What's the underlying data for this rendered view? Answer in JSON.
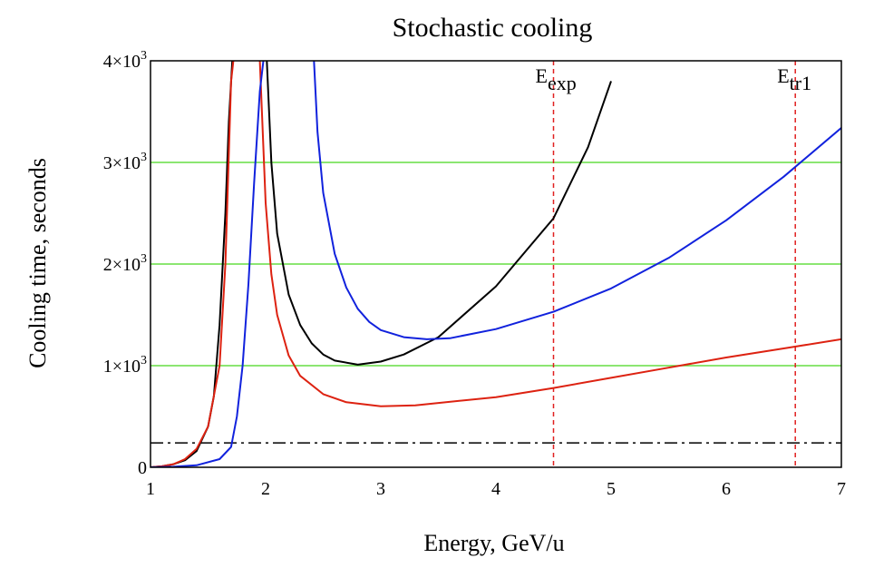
{
  "chart_data": {
    "type": "line",
    "title": "Stochastic cooling",
    "xlabel": "Energy, GeV/u",
    "ylabel": "Cooling time, seconds",
    "xlim": [
      1,
      7
    ],
    "ylim": [
      0,
      4000
    ],
    "x_ticks": [
      "1",
      "2",
      "3",
      "4",
      "5",
      "6",
      "7"
    ],
    "y_ticks": [
      {
        "value": 0,
        "base": "0",
        "exp": ""
      },
      {
        "value": 1000,
        "base": "1×10",
        "exp": "3"
      },
      {
        "value": 2000,
        "base": "2×10",
        "exp": "3"
      },
      {
        "value": 3000,
        "base": "3×10",
        "exp": "3"
      },
      {
        "value": 4000,
        "base": "4×10",
        "exp": "3"
      }
    ],
    "grid": {
      "y_lines": [
        1000,
        2000,
        3000
      ],
      "color": "#66dd44"
    },
    "reference_line": {
      "y": 240,
      "style": "dash-dot",
      "color": "#000000"
    },
    "vertical_markers": [
      {
        "x": 4.5,
        "label_main": "E",
        "label_sub": "exp",
        "color": "#e02020"
      },
      {
        "x": 6.6,
        "label_main": "E",
        "label_sub": "tr1",
        "color": "#e02020"
      }
    ],
    "series": [
      {
        "color": "#000000",
        "branches": [
          {
            "x": [
              1.0,
              1.1,
              1.2,
              1.3,
              1.4,
              1.5,
              1.55,
              1.6,
              1.65,
              1.68,
              1.71
            ],
            "y": [
              0,
              10,
              30,
              70,
              160,
              400,
              700,
              1400,
              2500,
              3400,
              4000
            ]
          },
          {
            "x": [
              2.01,
              2.05,
              2.1,
              2.2,
              2.3,
              2.4,
              2.5,
              2.6,
              2.8,
              3.0,
              3.2,
              3.5,
              4.0,
              4.5,
              4.8,
              5.0
            ],
            "y": [
              4000,
              3000,
              2300,
              1700,
              1400,
              1220,
              1110,
              1050,
              1010,
              1040,
              1110,
              1280,
              1780,
              2450,
              3150,
              3800
            ]
          }
        ]
      },
      {
        "color": "#dd2211",
        "branches": [
          {
            "x": [
              1.0,
              1.1,
              1.2,
              1.3,
              1.4,
              1.5,
              1.6,
              1.65,
              1.7,
              1.72
            ],
            "y": [
              0,
              10,
              30,
              80,
              180,
              400,
              1000,
              2000,
              3800,
              4000
            ]
          },
          {
            "x": [
              1.95,
              2.0,
              2.05,
              2.1,
              2.2,
              2.3,
              2.5,
              2.7,
              3.0,
              3.3,
              4.0,
              4.5,
              5.0,
              5.5,
              6.0,
              6.5,
              7.0
            ],
            "y": [
              4000,
              2600,
              1900,
              1500,
              1100,
              900,
              720,
              640,
              600,
              610,
              690,
              780,
              880,
              980,
              1080,
              1170,
              1260
            ]
          }
        ]
      },
      {
        "color": "#1122dd",
        "branches": [
          {
            "x": [
              1.0,
              1.2,
              1.4,
              1.6,
              1.7,
              1.75,
              1.8,
              1.85,
              1.9,
              1.95,
              1.98
            ],
            "y": [
              0,
              5,
              20,
              80,
              200,
              500,
              1000,
              1800,
              2800,
              3700,
              4000
            ]
          },
          {
            "x": [
              2.42,
              2.45,
              2.5,
              2.6,
              2.7,
              2.8,
              2.9,
              3.0,
              3.2,
              3.4,
              3.6,
              4.0,
              4.5,
              5.0,
              5.5,
              6.0,
              6.5,
              7.0
            ],
            "y": [
              4000,
              3300,
              2700,
              2100,
              1770,
              1560,
              1430,
              1350,
              1280,
              1260,
              1270,
              1360,
              1530,
              1760,
              2060,
              2430,
              2860,
              3340
            ]
          }
        ]
      }
    ]
  }
}
